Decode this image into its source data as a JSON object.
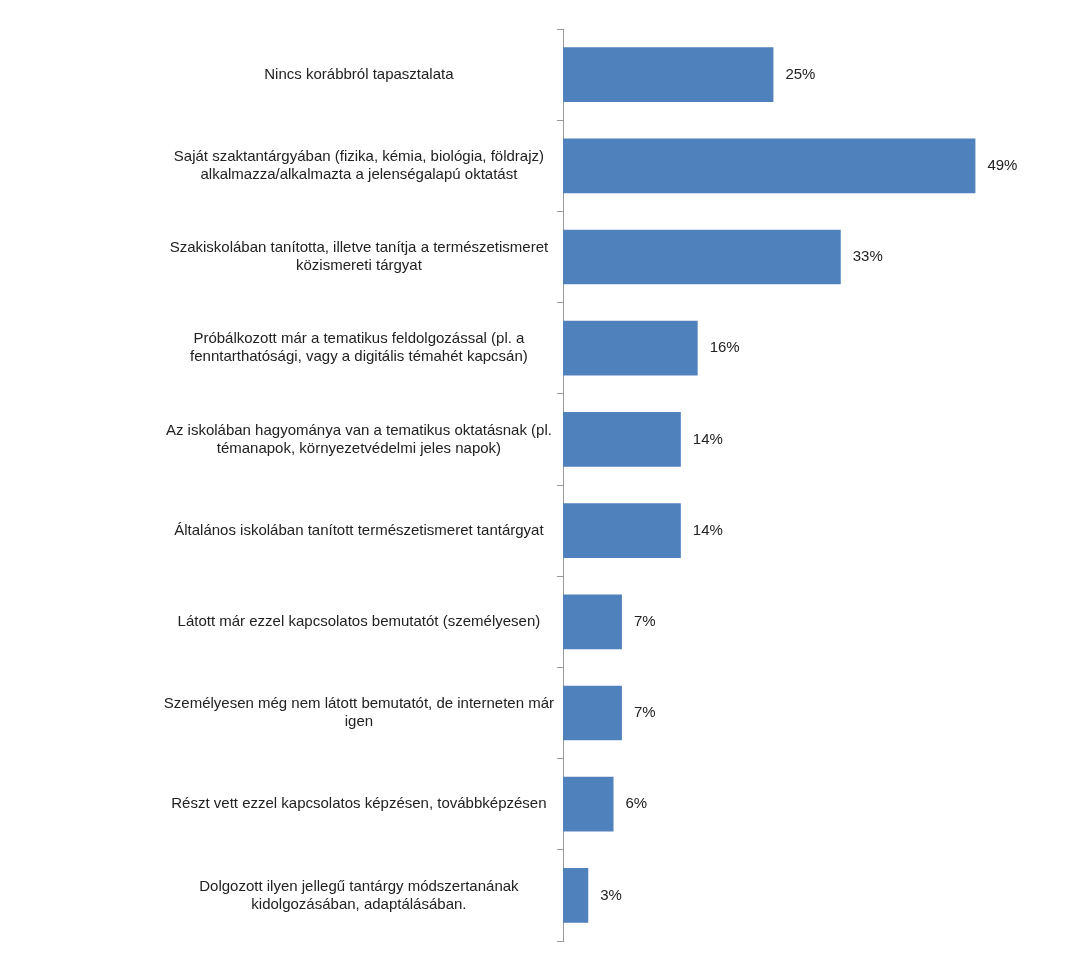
{
  "chart_data": {
    "type": "bar",
    "orientation": "horizontal",
    "categories": [
      "Nincs korábbról tapasztalata",
      "Saját szaktantárgyában (fizika, kémia, biológia, földrajz) alkalmazza/alkalmazta a jelenségalapú oktatást",
      "Szakiskolában tanította, illetve tanítja a természetismeret közismereti tárgyat",
      "Próbálkozott már a tematikus feldolgozással (pl. a fenntarthatósági, vagy a digitális témahét kapcsán)",
      "Az iskolában hagyománya van a tematikus oktatásnak (pl. témanapok, környezetvédelmi jeles napok)",
      "Általános iskolában tanított természetismeret tantárgyat",
      "Látott már ezzel kapcsolatos bemutatót (személyesen)",
      "Személyesen még nem látott bemutatót, de interneten már igen",
      "Részt vett ezzel kapcsolatos képzésen, továbbképzésen",
      "Dolgozott ilyen jellegű tantárgy módszertanának kidolgozásában, adaptálásában."
    ],
    "values": [
      25,
      49,
      33,
      16,
      14,
      14,
      7,
      7,
      6,
      3
    ],
    "value_labels": [
      "25%",
      "49%",
      "33%",
      "16%",
      "14%",
      "14%",
      "7%",
      "7%",
      "6%",
      "3%"
    ],
    "color": "#4f81bd"
  }
}
